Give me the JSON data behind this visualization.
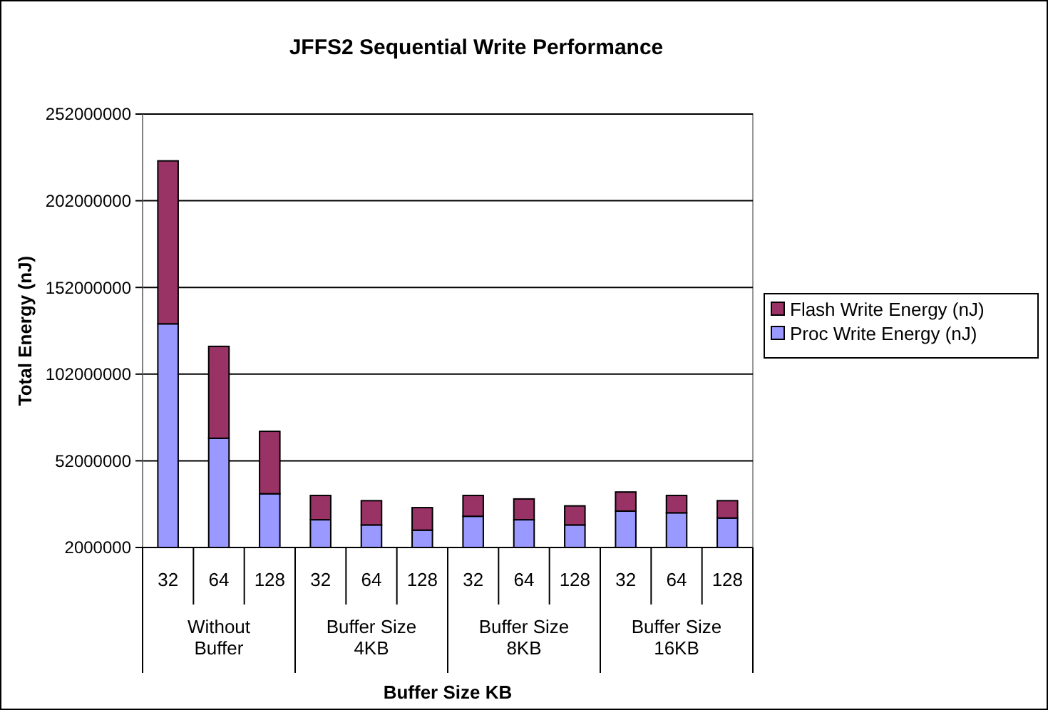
{
  "chart_data": {
    "type": "bar",
    "title": "JFFS2 Sequential Write Performance",
    "xlabel": "Buffer Size KB",
    "ylabel": "Total Energy (nJ)",
    "categories": [
      "32",
      "64",
      "128",
      "32",
      "64",
      "128",
      "32",
      "64",
      "128",
      "32",
      "64",
      "128"
    ],
    "annotations": [
      "Without Buffer",
      "Buffer Size 4KB",
      "Buffer Size 8KB",
      "Buffer Size 16KB"
    ],
    "series": [
      {
        "name": "Proc Write Energy (nJ)",
        "color": "#9999ff",
        "values": [
          131000000,
          65000000,
          33000000,
          18000000,
          15000000,
          12000000,
          20000000,
          18000000,
          15000000,
          23000000,
          22000000,
          19000000
        ]
      },
      {
        "name": "Flash Write Energy (nJ)",
        "color": "#993366",
        "values": [
          94000000,
          53000000,
          36000000,
          14000000,
          14000000,
          13000000,
          12000000,
          12000000,
          11000000,
          11000000,
          10000000,
          10000000
        ]
      }
    ],
    "stacked": true,
    "ylim": [
      2000000,
      252000000
    ],
    "yticks": [
      2000000,
      52000000,
      102000000,
      152000000,
      202000000,
      252000000
    ],
    "grid": "y",
    "legend": "right"
  }
}
